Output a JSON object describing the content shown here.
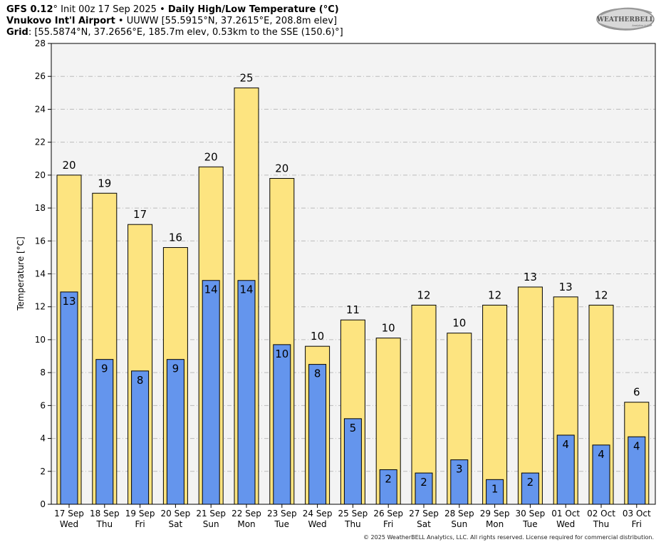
{
  "header": {
    "model": "GFS 0.12",
    "deg": "°",
    "init": " Init 00z 17 Sep 2025 • ",
    "product": "Daily High/Low Temperature (°C)",
    "station_name": "Vnukovo Int'l Airport",
    "station_rest": " • UUWW [55.5915°N, 37.2615°E, 208.8m elev]",
    "grid_label": "Grid",
    "grid_rest": ": [55.5874°N, 37.2656°E, 185.7m elev, 0.53km to the SSE (150.6)°]"
  },
  "logo": {
    "text": "WEATHERBELL",
    "sub": "Analytics LLC"
  },
  "copyright": "© 2025 WeatherBELL Analytics, LLC. All rights reserved. License required for commercial distribution.",
  "colors": {
    "high": "#fde480",
    "low": "#6495ed",
    "plot_bg": "#f3f3f3",
    "grid": "#bbbbbb"
  },
  "chart_data": {
    "type": "bar",
    "title": "Daily High/Low Temperature (°C)",
    "xlabel": "",
    "ylabel": "Temperature [°C]",
    "ylim": [
      0,
      28
    ],
    "yticks": [
      0,
      2,
      4,
      6,
      8,
      10,
      12,
      14,
      16,
      18,
      20,
      22,
      24,
      26,
      28
    ],
    "grid": true,
    "categories": [
      [
        "17 Sep",
        "Wed"
      ],
      [
        "18 Sep",
        "Thu"
      ],
      [
        "19 Sep",
        "Fri"
      ],
      [
        "20 Sep",
        "Sat"
      ],
      [
        "21 Sep",
        "Sun"
      ],
      [
        "22 Sep",
        "Mon"
      ],
      [
        "23 Sep",
        "Tue"
      ],
      [
        "24 Sep",
        "Wed"
      ],
      [
        "25 Sep",
        "Thu"
      ],
      [
        "26 Sep",
        "Fri"
      ],
      [
        "27 Sep",
        "Sat"
      ],
      [
        "28 Sep",
        "Sun"
      ],
      [
        "29 Sep",
        "Mon"
      ],
      [
        "30 Sep",
        "Tue"
      ],
      [
        "01 Oct",
        "Wed"
      ],
      [
        "02 Oct",
        "Thu"
      ],
      [
        "03 Oct",
        "Fri"
      ]
    ],
    "series": [
      {
        "key": "high",
        "values": [
          20.0,
          18.9,
          17.0,
          15.6,
          20.5,
          25.3,
          19.8,
          9.6,
          11.2,
          10.1,
          12.1,
          10.4,
          12.1,
          13.2,
          12.6,
          12.1,
          6.2
        ],
        "labels": [
          "20",
          "19",
          "17",
          "16",
          "20",
          "25",
          "20",
          "10",
          "11",
          "10",
          "12",
          "10",
          "12",
          "13",
          "13",
          "12",
          "6"
        ]
      },
      {
        "key": "low",
        "values": [
          12.9,
          8.8,
          8.1,
          8.8,
          13.6,
          13.6,
          9.7,
          8.5,
          5.2,
          2.1,
          1.9,
          2.7,
          1.5,
          1.9,
          4.2,
          3.6,
          4.1
        ],
        "labels": [
          "13",
          "9",
          "8",
          "9",
          "14",
          "14",
          "10",
          "8",
          "5",
          "2",
          "2",
          "3",
          "1",
          "2",
          "4",
          "4",
          "4"
        ]
      }
    ]
  }
}
